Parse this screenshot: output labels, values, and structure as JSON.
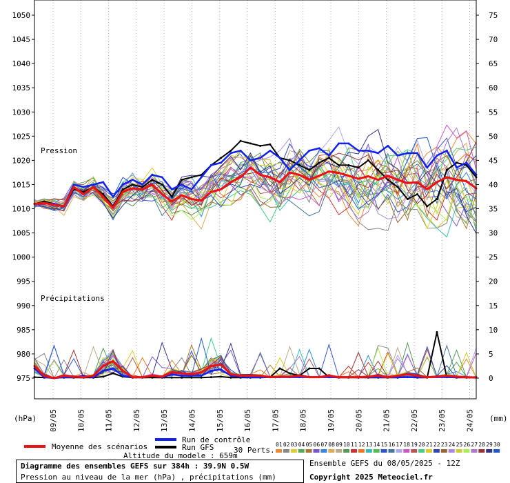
{
  "chart_data": {
    "type": "line",
    "title": "Diagramme des ensembles GEFS sur 384h : 39.9N 0.5W",
    "subtitle": "Pression au niveau de la mer (hPa) , précipitations (mm)",
    "left_axis": {
      "unit": "(hPa)",
      "ticks": [
        1050,
        1045,
        1040,
        1035,
        1030,
        1025,
        1020,
        1015,
        1010,
        1005,
        1000,
        995,
        990,
        985,
        980,
        975
      ],
      "range": [
        975,
        1050
      ]
    },
    "right_axis": {
      "unit": "(mm)",
      "ticks": [
        75,
        70,
        65,
        60,
        55,
        50,
        45,
        40,
        35,
        30,
        25,
        20,
        15,
        10,
        5,
        0
      ],
      "range": [
        0,
        75
      ]
    },
    "x_ticks": [
      "09/05",
      "10/05",
      "11/05",
      "12/05",
      "13/05",
      "14/05",
      "15/05",
      "16/05",
      "17/05",
      "18/05",
      "19/05",
      "20/05",
      "21/05",
      "22/05",
      "23/05",
      "24/05"
    ],
    "panel_labels": {
      "pressure": "Pression",
      "precip": "Précipitations"
    },
    "grid": true,
    "pressure_mean_hpa": [
      1011,
      1011.2,
      1010.8,
      1010.5,
      1014.5,
      1013,
      1014.5,
      1012.5,
      1010.2,
      1013.5,
      1014.2,
      1014,
      1015,
      1013,
      1011.5,
      1012.8,
      1012,
      1011.7,
      1013.5,
      1014,
      1015.5,
      1016.5,
      1018.5,
      1017,
      1016.5,
      1015.5,
      1017.5,
      1017,
      1016,
      1016.8,
      1017.7,
      1017.4,
      1016.8,
      1016.2,
      1016.7,
      1016,
      1016.8,
      1016,
      1015.3,
      1015.5,
      1014,
      1015.5,
      1016.5,
      1016,
      1015.7,
      1014.2
    ],
    "pressure_control_hpa": [
      1011,
      1011.2,
      1011,
      1010.5,
      1015,
      1014.5,
      1015,
      1015.5,
      1012.5,
      1015,
      1016,
      1015,
      1017,
      1016.5,
      1014,
      1015,
      1014,
      1016.5,
      1019,
      1019.5,
      1021.5,
      1022,
      1020,
      1020.5,
      1022,
      1020.5,
      1018,
      1020,
      1022,
      1022.5,
      1021,
      1023.5,
      1023.5,
      1022,
      1022,
      1021.5,
      1023,
      1021,
      1021.5,
      1021.5,
      1018.5,
      1021,
      1022,
      1018.5,
      1019.5,
      1017
    ],
    "pressure_gfs_hpa": [
      1011,
      1011.5,
      1011,
      1010.5,
      1014,
      1013.5,
      1014.5,
      1013,
      1010.5,
      1014,
      1015,
      1014.5,
      1016,
      1015,
      1012.5,
      1016,
      1016.5,
      1017,
      1019,
      1020.5,
      1022,
      1024,
      1023.5,
      1023,
      1023.3,
      1020.5,
      1020,
      1019,
      1018,
      1019.5,
      1020.5,
      1019,
      1019,
      1018.5,
      1020,
      1018,
      1016,
      1014.5,
      1012,
      1013,
      1010.5,
      1012,
      1018,
      1019.5,
      1019,
      1016.5
    ],
    "precip_mean_mm": [
      2.5,
      0.5,
      0,
      0.5,
      0.3,
      0.2,
      0.5,
      2.5,
      3.5,
      1.5,
      0.2,
      0.2,
      0.5,
      0.3,
      1.2,
      1,
      0.8,
      1.2,
      2.5,
      2.8,
      0.8,
      0.5,
      0.5,
      0.5,
      0.2,
      0.3,
      0.3,
      0.5,
      0.2,
      0.2,
      0.5,
      0.2,
      0.2,
      0.2,
      0.3,
      0.5,
      0.2,
      0.5,
      0.8,
      0.5,
      0.2,
      0.3,
      0.5,
      0.3,
      0.2,
      0.1
    ],
    "precip_control_mm": [
      2,
      0.2,
      0,
      0.2,
      0.2,
      0.5,
      0.2,
      1.5,
      2,
      0.5,
      0.2,
      0.2,
      0.5,
      0.2,
      0.8,
      0.5,
      0.5,
      0.5,
      1.5,
      1.8,
      0.5,
      0.3,
      0.2,
      0.2,
      0.2,
      0.2,
      0.2,
      0.2,
      0.2,
      0.2,
      0.2,
      0.2,
      0.2,
      0.2,
      0.2,
      0.2,
      0.2,
      0.2,
      0.2,
      0.2,
      0.2,
      0.2,
      0.2,
      0.2,
      0.2,
      0.2
    ],
    "precip_gfs_mm": [
      0.2,
      0.1,
      0.1,
      0.1,
      0.1,
      0.1,
      0.1,
      0.3,
      1,
      0.3,
      0.1,
      0.1,
      0.1,
      0.1,
      0.1,
      0.1,
      0.1,
      0.1,
      0.2,
      0.3,
      0.1,
      0.1,
      0.1,
      0.1,
      0.2,
      2,
      1,
      0.5,
      2,
      2,
      0.2,
      0.1,
      0.1,
      0.1,
      0.1,
      0.1,
      0.1,
      0.1,
      0.2,
      0.1,
      0.1,
      9.5,
      0.2,
      0.1,
      0.1,
      0.1
    ],
    "legend": {
      "mean": "Moyenne des scénarios",
      "control": "Run de contrôle",
      "gfs": "Run GFS",
      "perts_label": "30 Perts.",
      "pert_numbers": [
        "01",
        "02",
        "03",
        "04",
        "05",
        "06",
        "07",
        "08",
        "09",
        "10",
        "11",
        "12",
        "13",
        "14",
        "15",
        "16",
        "17",
        "18",
        "19",
        "20",
        "21",
        "22",
        "23",
        "24",
        "25",
        "26",
        "27",
        "28",
        "29",
        "30"
      ]
    },
    "colors": {
      "mean": "#ee1111",
      "control": "#1122ee",
      "gfs": "#000000",
      "perts": [
        "#ee8833",
        "#888888",
        "#ddcc33",
        "#55aa55",
        "#aa7733",
        "#7755cc",
        "#3388dd",
        "#ddaa55",
        "#bbaa88",
        "#559955",
        "#cc3333",
        "#ee7722",
        "#33bbbb",
        "#55bb55",
        "#3355cc",
        "#447799",
        "#aaaaee",
        "#cc55cc",
        "#bb5555",
        "#44cc88",
        "#ddcc22",
        "#3344bb",
        "#996633",
        "#aa88dd",
        "#cccc33",
        "#aaee55",
        "#aa77cc",
        "#993333",
        "#333388",
        "#2255cc"
      ]
    }
  },
  "footer": {
    "altitude": "Altitude du modele : 659m",
    "title": "Diagramme des ensembles GEFS sur 384h : 39.9N 0.5W",
    "subtitle": "Pression au niveau de la mer (hPa) , précipitations (mm)",
    "run": "Ensemble GEFS du 08/05/2025 - 12Z",
    "copyright": "Copyright 2025 Meteociel.fr"
  }
}
